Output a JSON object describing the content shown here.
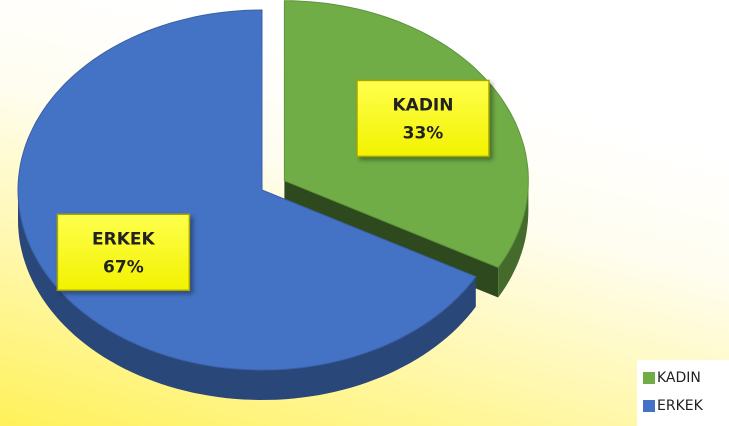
{
  "chart_data": {
    "type": "pie3d",
    "categories": [
      "KADIN",
      "ERKEK"
    ],
    "values": [
      33,
      67
    ],
    "value_labels": [
      "33%",
      "67%"
    ],
    "series": [
      {
        "name": "KADIN",
        "color": "#70ad47"
      },
      {
        "name": "ERKEK",
        "color": "#4472c4"
      }
    ],
    "legend": "lower right"
  }
}
